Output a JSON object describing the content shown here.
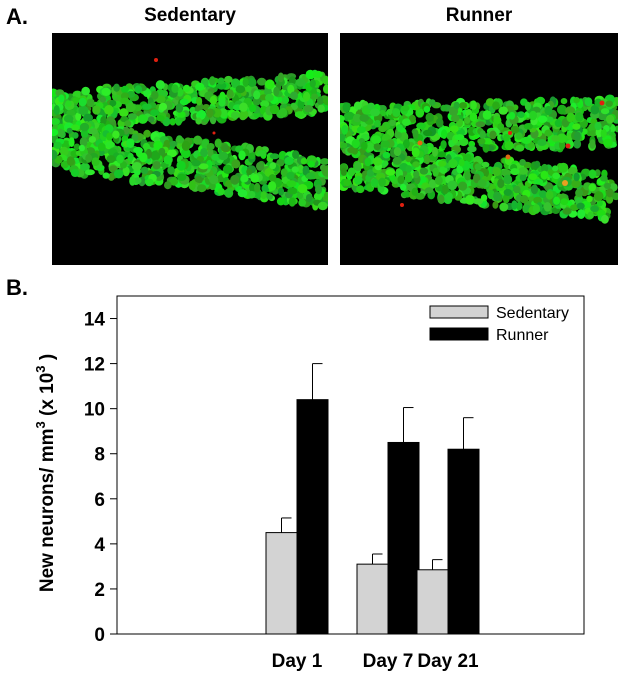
{
  "panels": {
    "a_label": "A.",
    "b_label": "B."
  },
  "images": {
    "left_title": "Sedentary",
    "right_title": "Runner"
  },
  "colors": {
    "sedentary_bar": "#d3d3d3",
    "runner_bar": "#000000",
    "neuron_green": "#2fd32a",
    "marker_red": "#e02010",
    "micro_bg": "#000000"
  },
  "chart_data": {
    "type": "bar",
    "categories": [
      "Day 1",
      "Day 7",
      "Day 21"
    ],
    "series": [
      {
        "name": "Sedentary",
        "values": [
          4.5,
          3.1,
          2.85
        ],
        "errors": [
          0.65,
          0.45,
          0.45
        ]
      },
      {
        "name": "Runner",
        "values": [
          10.4,
          8.5,
          8.2
        ],
        "errors": [
          1.6,
          1.55,
          1.4
        ]
      }
    ],
    "ylabel_main": "New neurons/ mm",
    "ylabel_sup": "3",
    "ylabel_tail": " (x 10",
    "ylabel_sup2": "3",
    "ylabel_end": " )",
    "ylim": [
      0,
      15
    ],
    "yticks": [
      "0",
      "2",
      "4",
      "6",
      "8",
      "10",
      "12",
      "14"
    ],
    "legend_position": "top-right",
    "grid": false
  }
}
